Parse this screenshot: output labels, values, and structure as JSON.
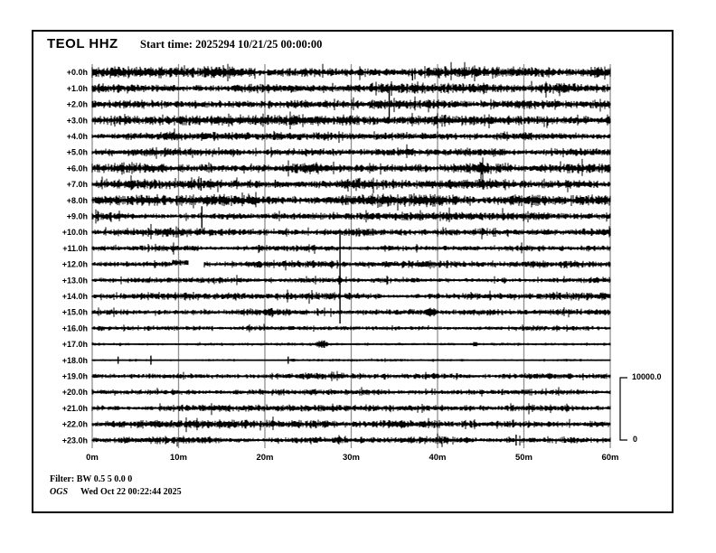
{
  "header": {
    "station": "TEOL HHZ",
    "start_time": "Start time: 2025294 10/21/25 00:00:00"
  },
  "scale_bar": {
    "max": "10000.0",
    "min": "0"
  },
  "footer": {
    "filter": "Filter: BW 0.5 5 0.0 0",
    "org": "OGS",
    "generated": "Wed Oct 22 00:22:44 2025"
  },
  "chart_data": {
    "type": "line",
    "subtype": "helicorder",
    "title": "TEOL HHZ",
    "start_time": "2025294 10/21/25 00:00:00",
    "amplitude_scale": {
      "max": 10000.0,
      "min": 0
    },
    "x_axis": {
      "tick_labels": [
        "0m",
        "10m",
        "20m",
        "30m",
        "40m",
        "50m",
        "60m"
      ],
      "range_minutes": [
        0,
        60
      ],
      "grid": true
    },
    "y_axis": {
      "unit": "hours",
      "rows": 24,
      "direction": "top-down"
    },
    "colors": {
      "trace": "#000000",
      "grid": "#8f8f8f",
      "background": "#ffffff"
    },
    "rows": [
      {
        "label": "+0.0h",
        "noise_amp": 3.8,
        "events": [
          {
            "type": "spike",
            "minute": 37.1,
            "up": 2,
            "down": 9
          }
        ]
      },
      {
        "label": "+1.0h",
        "noise_amp": 3.2,
        "events": [
          {
            "type": "spike",
            "minute": 0.8,
            "up": 5,
            "down": 5
          },
          {
            "type": "spike",
            "minute": 34.6,
            "up": 5,
            "down": 2
          },
          {
            "type": "spike",
            "minute": 40.7,
            "up": 4,
            "down": 4
          }
        ]
      },
      {
        "label": "+2.0h",
        "noise_amp": 3.0,
        "events": [
          {
            "type": "spike",
            "minute": 34.4,
            "up": 15,
            "down": 17
          }
        ]
      },
      {
        "label": "+3.0h",
        "noise_amp": 3.3,
        "events": [
          {
            "type": "spike",
            "minute": 5.2,
            "up": 3,
            "down": 3
          }
        ]
      },
      {
        "label": "+4.0h",
        "noise_amp": 2.5,
        "events": []
      },
      {
        "label": "+5.0h",
        "noise_amp": 2.9,
        "events": [
          {
            "type": "blob",
            "minute": 16.1,
            "amp": 3.5,
            "width_min": 1.5
          }
        ]
      },
      {
        "label": "+6.0h",
        "noise_amp": 3.8,
        "events": [
          {
            "type": "spike",
            "minute": 52.1,
            "up": 4,
            "down": 2
          }
        ]
      },
      {
        "label": "+7.0h",
        "noise_amp": 3.3,
        "events": [
          {
            "type": "spike",
            "minute": 12.6,
            "up": 7,
            "down": 7
          },
          {
            "type": "spike",
            "minute": 21.2,
            "up": 5,
            "down": 4
          }
        ]
      },
      {
        "label": "+8.0h",
        "noise_amp": 3.8,
        "events": []
      },
      {
        "label": "+9.0h",
        "noise_amp": 3.3,
        "events": [
          {
            "type": "spike",
            "minute": 12.7,
            "up": 11,
            "down": 13
          },
          {
            "type": "blob",
            "minute": 44.8,
            "amp": 3,
            "width_min": 1
          }
        ]
      },
      {
        "label": "+10.0h",
        "noise_amp": 2.9,
        "events": []
      },
      {
        "label": "+11.0h",
        "noise_amp": 2.1,
        "events": []
      },
      {
        "label": "+12.0h",
        "noise_amp": 2.3,
        "events": [
          {
            "type": "step",
            "minute": 9.3,
            "end_minute": 11.1,
            "offset": -2
          },
          {
            "type": "gap",
            "minute": 11.1,
            "end_minute": 12.9
          }
        ]
      },
      {
        "label": "+13.0h",
        "noise_amp": 2.3,
        "events": [
          {
            "type": "spike",
            "minute": 28.7,
            "up": 52,
            "down": 48
          },
          {
            "type": "blob",
            "minute": 28.7,
            "amp": 5,
            "width_min": 1.2
          }
        ]
      },
      {
        "label": "+14.0h",
        "noise_amp": 2.3,
        "events": [
          {
            "type": "spike",
            "minute": 22.5,
            "up": 3,
            "down": 3
          }
        ]
      },
      {
        "label": "+15.0h",
        "noise_amp": 2.3,
        "events": [
          {
            "type": "blob",
            "minute": 39.2,
            "amp": 5.5,
            "width_min": 2.5
          }
        ]
      },
      {
        "label": "+16.0h",
        "noise_amp": 1.9,
        "events": [
          {
            "type": "blob",
            "minute": 23.0,
            "amp": 2,
            "width_min": 1.5
          }
        ]
      },
      {
        "label": "+17.0h",
        "noise_amp": 1.1,
        "events": [
          {
            "type": "blob",
            "minute": 26.6,
            "amp": 4,
            "width_min": 2.8
          },
          {
            "type": "blob",
            "minute": 44.3,
            "amp": 2.5,
            "width_min": 1.5
          }
        ]
      },
      {
        "label": "+18.0h",
        "noise_amp": 0.8,
        "events": [
          {
            "type": "spike",
            "minute": 3.0,
            "up": 4,
            "down": 4
          },
          {
            "type": "spike",
            "minute": 6.8,
            "up": 5,
            "down": 5
          },
          {
            "type": "spike",
            "minute": 22.7,
            "up": 4,
            "down": 4
          },
          {
            "type": "blob",
            "minute": 23.3,
            "amp": 1.5,
            "width_min": 1.5
          },
          {
            "type": "blob",
            "minute": 42.8,
            "amp": 1.2,
            "width_min": 1
          }
        ]
      },
      {
        "label": "+19.0h",
        "noise_amp": 2.0,
        "events": [
          {
            "type": "blob",
            "minute": 55.3,
            "amp": 3.5,
            "width_min": 1.2
          }
        ]
      },
      {
        "label": "+20.0h",
        "noise_amp": 1.9,
        "events": []
      },
      {
        "label": "+21.0h",
        "noise_amp": 2.1,
        "events": [
          {
            "type": "blob",
            "minute": 13.9,
            "amp": 2.5,
            "width_min": 0.8
          },
          {
            "type": "spike",
            "minute": 39.0,
            "up": 2.5,
            "down": 2.5
          }
        ]
      },
      {
        "label": "+22.0h",
        "noise_amp": 2.6,
        "events": [
          {
            "type": "blob",
            "minute": 23.5,
            "amp": 3,
            "width_min": 1.5
          },
          {
            "type": "blob",
            "minute": 52.9,
            "amp": 3,
            "width_min": 1.2
          }
        ]
      },
      {
        "label": "+23.0h",
        "noise_amp": 2.4,
        "events": [
          {
            "type": "blob",
            "minute": 43.5,
            "amp": 3,
            "width_min": 2
          },
          {
            "type": "spike",
            "minute": 49.1,
            "up": 6,
            "down": 6
          }
        ]
      }
    ]
  }
}
